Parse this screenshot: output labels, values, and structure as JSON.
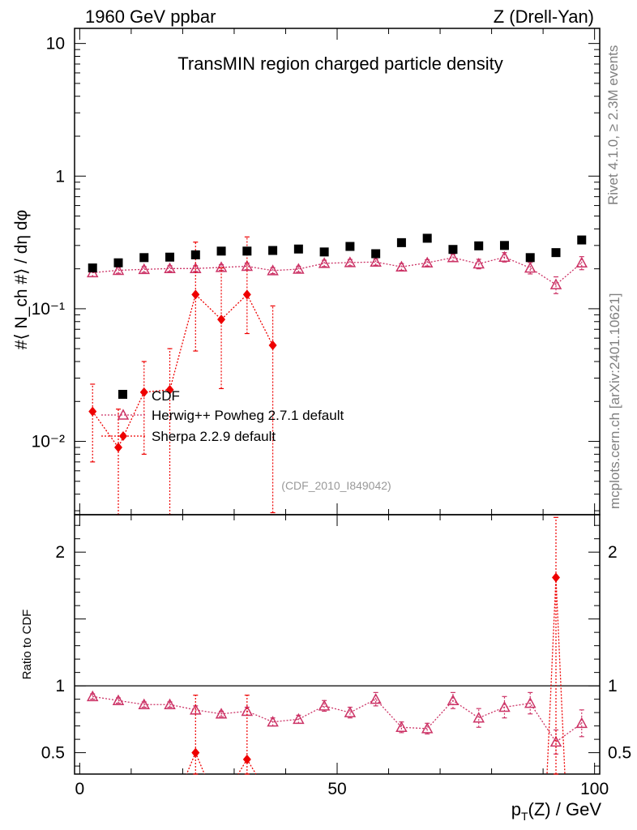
{
  "header": {
    "left": "1960 GeV ppbar",
    "right": "Z (Drell-Yan)"
  },
  "side_labels": {
    "rivet": "Rivet 4.1.0, ≥ 2.3M events",
    "mcplots": "mcplots.cern.ch [arXiv:2401.10621]"
  },
  "colors": {
    "cdf": "#000000",
    "herwig": "#cc3366",
    "sherpa": "#ee0000",
    "frame": "#000000"
  },
  "chart_data": [
    {
      "type": "scatter",
      "panel": "main",
      "title": "TransMIN region charged particle density",
      "watermark": "(CDF_2010_I849042)",
      "ylabel": "#⟨ N_ch #⟩ / dη dφ",
      "yscale": "log",
      "xlim": [
        -1,
        101
      ],
      "ylim": [
        0.0028,
        13
      ],
      "y_ticks": [
        {
          "value": 10,
          "label": "10"
        },
        {
          "value": 1,
          "label": "1"
        },
        {
          "value": 0.1,
          "label": "10⁻¹"
        },
        {
          "value": 0.01,
          "label": "10⁻²"
        }
      ],
      "legend": {
        "position": "lower-left",
        "entries": [
          {
            "key": "cdf",
            "label": "CDF"
          },
          {
            "key": "herwig",
            "label": "Herwig++ Powheg 2.7.1 default"
          },
          {
            "key": "sherpa",
            "label": "Sherpa 2.2.9 default"
          }
        ]
      },
      "x": [
        2.5,
        7.5,
        12.5,
        17.5,
        22.5,
        27.5,
        32.5,
        37.5,
        42.5,
        47.5,
        52.5,
        57.5,
        62.5,
        67.5,
        72.5,
        77.5,
        82.5,
        87.5,
        92.5,
        97.5
      ],
      "series": [
        {
          "name": "CDF",
          "key": "cdf",
          "marker": "square",
          "values": [
            0.203,
            0.222,
            0.243,
            0.245,
            0.255,
            0.272,
            0.272,
            0.275,
            0.282,
            0.268,
            0.295,
            0.26,
            0.315,
            0.34,
            0.28,
            0.298,
            0.3,
            0.243,
            0.265,
            0.33
          ]
        },
        {
          "name": "Herwig++ Powheg 2.7.1 default",
          "key": "herwig",
          "marker": "triangle-open",
          "values": [
            0.187,
            0.195,
            0.198,
            0.201,
            0.201,
            0.205,
            0.209,
            0.194,
            0.199,
            0.22,
            0.223,
            0.225,
            0.207,
            0.222,
            0.243,
            0.218,
            0.245,
            0.203,
            0.152,
            0.222
          ],
          "errors": [
            0.012,
            0.01,
            0.01,
            0.01,
            0.01,
            0.01,
            0.012,
            0.01,
            0.01,
            0.012,
            0.012,
            0.012,
            0.012,
            0.012,
            0.015,
            0.018,
            0.02,
            0.02,
            0.022,
            0.025
          ]
        },
        {
          "name": "Sherpa 2.2.9 default",
          "key": "sherpa",
          "marker": "diamond",
          "x": [
            2.5,
            7.5,
            12.5,
            17.5,
            22.5,
            27.5,
            32.5,
            37.5
          ],
          "values": [
            0.0168,
            0.009,
            0.0235,
            0.0245,
            0.128,
            0.083,
            0.128,
            0.053
          ],
          "err_low": [
            0.0098,
            0.0065,
            0.0155,
            0.0225,
            0.08,
            0.058,
            0.063,
            0.0501
          ],
          "err_high": [
            0.0102,
            0.0085,
            0.0165,
            0.0255,
            0.19,
            0.12,
            0.22,
            0.052
          ]
        }
      ]
    },
    {
      "type": "line",
      "panel": "ratio",
      "ylabel": "Ratio to CDF",
      "xlabel": "p_T(Z) / GeV",
      "xlim": [
        -1,
        101
      ],
      "ylim": [
        0.34,
        2.28
      ],
      "reference": 1,
      "x_ticks": [
        0,
        50,
        100
      ],
      "y_ticks": [
        {
          "value": 0.5,
          "label": "0.5"
        },
        {
          "value": 1,
          "label": "1"
        },
        {
          "value": 2,
          "label": "2"
        }
      ],
      "series": [
        {
          "name": "Herwig++ Powheg 2.7.1 default",
          "key": "herwig",
          "x": [
            2.5,
            7.5,
            12.5,
            17.5,
            22.5,
            27.5,
            32.5,
            37.5,
            42.5,
            47.5,
            52.5,
            57.5,
            62.5,
            67.5,
            72.5,
            77.5,
            82.5,
            87.5,
            92.5,
            97.5
          ],
          "values": [
            0.92,
            0.89,
            0.86,
            0.86,
            0.82,
            0.79,
            0.81,
            0.73,
            0.75,
            0.85,
            0.8,
            0.9,
            0.69,
            0.68,
            0.89,
            0.76,
            0.84,
            0.87,
            0.58,
            0.72
          ],
          "errors": [
            0.02,
            0.02,
            0.02,
            0.02,
            0.03,
            0.02,
            0.03,
            0.03,
            0.03,
            0.04,
            0.04,
            0.05,
            0.04,
            0.04,
            0.06,
            0.07,
            0.08,
            0.08,
            0.09,
            0.1
          ]
        },
        {
          "name": "Sherpa 2.2.9 default",
          "key": "sherpa",
          "x": [
            22.5,
            32.5,
            92.5
          ],
          "values": [
            0.5,
            0.45,
            1.81
          ],
          "err_low": [
            0.3,
            0.25,
            1.5
          ],
          "err_high": [
            0.43,
            0.48,
            0.45
          ]
        }
      ]
    }
  ]
}
